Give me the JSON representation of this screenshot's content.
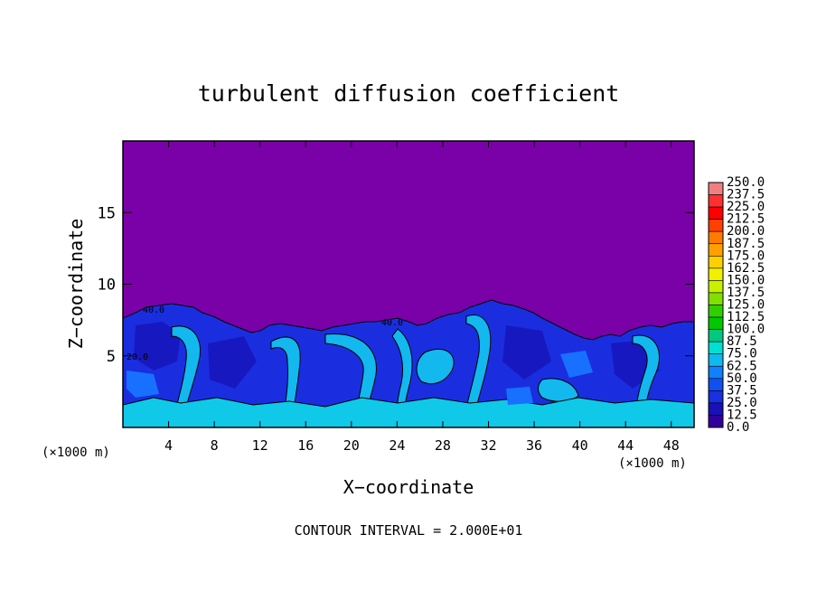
{
  "chart_data": {
    "type": "heatmap",
    "title": "turbulent diffusion coefficient",
    "xlabel": "X−coordinate",
    "ylabel": "Z−coordinate",
    "x_unit_left": "(×1000 m)",
    "x_unit_right": "(×1000 m)",
    "xlim": [
      0,
      50
    ],
    "ylim": [
      0,
      20
    ],
    "x_ticks": [
      4,
      8,
      12,
      16,
      20,
      24,
      28,
      32,
      36,
      40,
      44,
      48
    ],
    "y_ticks": [
      5,
      10,
      15
    ],
    "colorbar": {
      "levels": [
        "250.0",
        "237.5",
        "225.0",
        "212.5",
        "200.0",
        "187.5",
        "175.0",
        "162.5",
        "150.0",
        "137.5",
        "125.0",
        "112.5",
        "100.0",
        "87.5",
        "75.0",
        "62.5",
        "50.0",
        "37.5",
        "25.0",
        "12.5",
        "0.0"
      ],
      "colors": [
        "#f08080",
        "#ff3030",
        "#ff0000",
        "#ff4000",
        "#ff7a00",
        "#ffa000",
        "#ffd000",
        "#f0f000",
        "#c8f000",
        "#80e000",
        "#30d000",
        "#00c800",
        "#00c880",
        "#00e0d0",
        "#10b8f0",
        "#1080ff",
        "#1050f0",
        "#1830e0",
        "#1a10b8",
        "#30009a"
      ],
      "background_color": "#7a00a8"
    },
    "contour_labels": [
      "20.0",
      "40.0"
    ],
    "footer": "CONTOUR INTERVAL = 2.000E+01"
  }
}
